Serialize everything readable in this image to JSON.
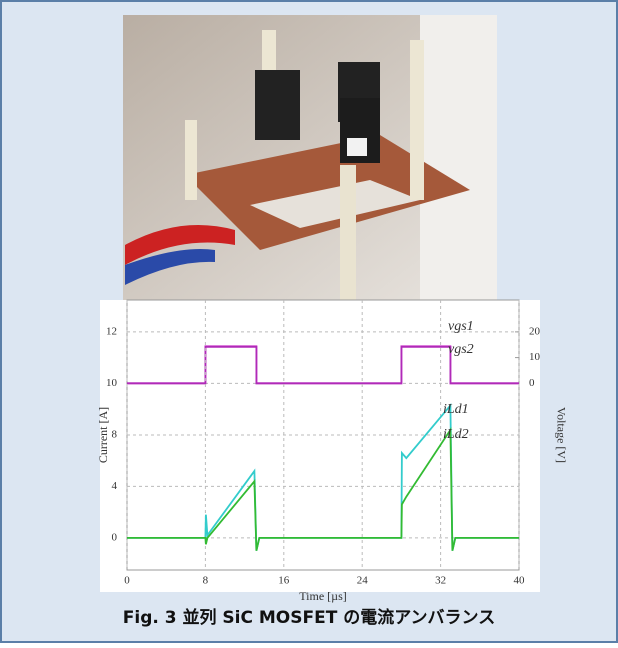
{
  "chart_data": [
    {
      "type": "line",
      "x": [
        0,
        8,
        8,
        13.2,
        13.2,
        28,
        28,
        33,
        33,
        40
      ],
      "series": [
        {
          "name": "vgs1",
          "color": "#cc33cc",
          "axis": "y2",
          "values": [
            0,
            0,
            14.4,
            14.4,
            0,
            0,
            14.4,
            14.4,
            0,
            0
          ]
        },
        {
          "name": "vgs2",
          "color": "#b02ab8",
          "axis": "y2",
          "values": [
            0,
            0,
            14.2,
            14.2,
            0,
            0,
            14.2,
            14.2,
            0,
            0
          ]
        }
      ],
      "xlim": [
        0,
        40
      ],
      "ylim": [
        2.74,
        13.24
      ],
      "yticks": [
        10,
        12
      ],
      "y2label": "Voltage [V]",
      "y2lim": [
        -72.6,
        32.4
      ],
      "y2ticks": [
        0,
        10,
        20
      ],
      "grid": true
    },
    {
      "type": "line",
      "x": [
        0,
        8,
        8.05,
        8.2,
        13,
        13.2,
        13.5,
        28,
        28.05,
        28.5,
        33,
        33.2,
        33.5,
        40
      ],
      "series": [
        {
          "name": "iLd1",
          "color": "#33cccc",
          "values": [
            0,
            0,
            1.8,
            0.2,
            5.2,
            -1,
            0,
            0,
            6.6,
            6.2,
            10.3,
            -1,
            0,
            0
          ]
        },
        {
          "name": "iLd2",
          "color": "#33bb33",
          "values": [
            0,
            0,
            -0.5,
            0,
            4.4,
            -1,
            0,
            0,
            2.6,
            3.2,
            8.4,
            -1,
            0,
            0
          ]
        }
      ],
      "xlabel": "Time [µs]",
      "xlim": [
        0,
        40
      ],
      "xticks": [
        0,
        8,
        16,
        24,
        32,
        40
      ],
      "ylabel": "Current [A]",
      "ylim": [
        -2.5,
        18.5
      ],
      "yticks": [
        0,
        4,
        8
      ],
      "grid": true
    }
  ],
  "caption": "Fig. 3  並列 SiC MOSFET の電流アンバランス"
}
